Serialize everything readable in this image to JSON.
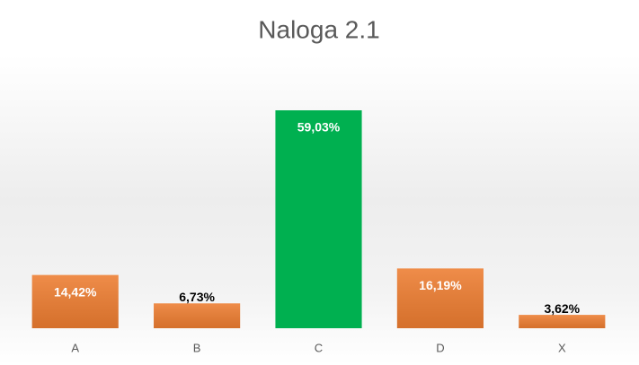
{
  "chart_data": {
    "type": "bar",
    "title": "Naloga 2.1",
    "categories": [
      "A",
      "B",
      "C",
      "D",
      "X"
    ],
    "values": [
      14.42,
      6.73,
      59.03,
      16.19,
      3.62
    ],
    "value_labels": [
      "14,42%",
      "6,73%",
      "59,03%",
      "16,19%",
      "3,62%"
    ],
    "colors": [
      "#ed7d31",
      "#ed7d31",
      "#00b050",
      "#ed7d31",
      "#ed7d31"
    ]
  }
}
